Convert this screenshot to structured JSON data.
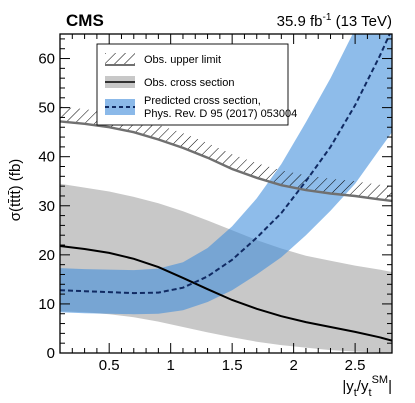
{
  "chart_data": {
    "type": "line",
    "experiment_label": "CMS",
    "lumi_label": {
      "value": "35.9 fb",
      "sup": "-1",
      "rest": " (13 TeV)"
    },
    "xlabel": {
      "p1": "|y",
      "s1": "t",
      "p2": "/y",
      "s2": "t",
      "s3": "SM",
      "p3": "|"
    },
    "ylabel": "σ(tt̄tt̄) (fb)",
    "xlim": [
      0.1,
      2.8
    ],
    "ylim": [
      0,
      65
    ],
    "x_ticks": [
      0.5,
      1,
      1.5,
      2,
      2.5
    ],
    "x_tick_labels": [
      "0.5",
      "1",
      "1.5",
      "2",
      "2.5"
    ],
    "y_ticks": [
      0,
      10,
      20,
      30,
      40,
      50,
      60
    ],
    "y_tick_labels": [
      "0",
      "10",
      "20",
      "30",
      "40",
      "50",
      "60"
    ],
    "legend": {
      "position": "top-right",
      "entries": [
        {
          "label": "Obs. upper limit"
        },
        {
          "label": "Obs. cross section"
        },
        {
          "label": "Predicted cross section,",
          "label2": "Phys. Rev. D 95 (2017) 053004"
        }
      ]
    },
    "colors": {
      "upper_limit_line": "#707070",
      "observed_band": "#c8c8c8",
      "observed_line": "#000000",
      "predicted_band": "#3d8bdb",
      "predicted_band_opacity": 0.58,
      "predicted_line": "#102a63"
    },
    "series": [
      {
        "name": "Obs. upper limit",
        "kind": "line_hatched",
        "x": [
          0.1,
          0.3,
          0.5,
          0.7,
          0.9,
          1.1,
          1.3,
          1.5,
          1.7,
          1.9,
          2.1,
          2.3,
          2.5,
          2.7,
          2.8
        ],
        "y": [
          47.2,
          46.7,
          46.0,
          45.0,
          43.5,
          41.8,
          39.8,
          37.5,
          35.7,
          34.2,
          33.2,
          32.5,
          32.0,
          31.3,
          31.0
        ]
      },
      {
        "name": "Obs. cross section",
        "kind": "band_with_line",
        "x": [
          0.1,
          0.3,
          0.5,
          0.7,
          0.9,
          1.1,
          1.3,
          1.5,
          1.7,
          1.9,
          2.1,
          2.3,
          2.5,
          2.7,
          2.8
        ],
        "central": [
          21.8,
          21.2,
          20.4,
          19.2,
          17.5,
          15.3,
          13.0,
          10.8,
          9.0,
          7.5,
          6.3,
          5.3,
          4.3,
          3.2,
          2.5
        ],
        "lower": [
          8.5,
          8.3,
          7.9,
          7.3,
          6.4,
          5.3,
          4.2,
          3.2,
          2.3,
          1.6,
          1.1,
          0.6,
          0.3,
          0.1,
          0.0
        ],
        "upper": [
          34.5,
          33.7,
          32.9,
          31.8,
          30.5,
          28.9,
          27.0,
          25.0,
          23.0,
          21.3,
          19.8,
          18.8,
          17.8,
          17.0,
          16.5
        ]
      },
      {
        "name": "Predicted cross section",
        "kind": "band_with_dashed_line",
        "x": [
          0.1,
          0.3,
          0.5,
          0.7,
          0.9,
          1.1,
          1.3,
          1.5,
          1.7,
          1.9,
          2.1,
          2.3,
          2.5,
          2.6,
          2.7,
          2.8
        ],
        "central": [
          12.8,
          12.6,
          12.4,
          12.2,
          12.3,
          13.3,
          15.6,
          19.0,
          23.5,
          28.5,
          35.0,
          42.0,
          50.5,
          55.5,
          60.5,
          66.0
        ],
        "lower": [
          8.3,
          8.1,
          8.0,
          7.9,
          8.0,
          8.7,
          10.4,
          12.8,
          16.0,
          19.5,
          24.0,
          29.0,
          34.5,
          38.0,
          41.5,
          45.0
        ],
        "upper": [
          17.3,
          17.1,
          17.0,
          16.9,
          17.2,
          18.5,
          21.4,
          25.8,
          31.5,
          38.5,
          47.0,
          56.0,
          66.0,
          71.0,
          76.0,
          82.0
        ]
      }
    ]
  }
}
